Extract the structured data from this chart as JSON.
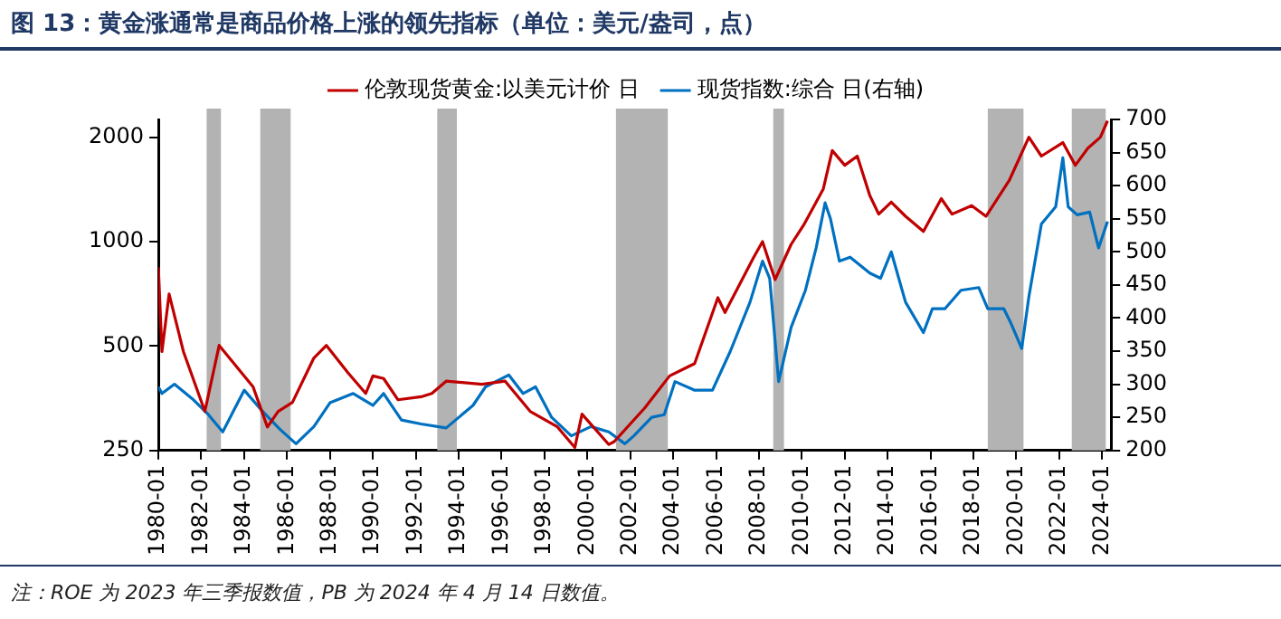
{
  "chart_data": {
    "type": "line",
    "title": "图 13：黄金涨通常是商品价格上涨的领先指标（单位：美元/盎司，点）",
    "annotations": [
      "注：ROE 为 2023 年三季报数值，PB 为 2024 年 4 月 14 日数值。"
    ],
    "log": "y",
    "grid": false,
    "legend": "top",
    "marker": "none",
    "line_style": "solid",
    "xlim": [
      "1980-01",
      "2024-06"
    ],
    "xticks": [
      "1980-01",
      "1982-01",
      "1984-01",
      "1986-01",
      "1988-01",
      "1990-01",
      "1992-01",
      "1994-01",
      "1996-01",
      "1998-01",
      "2000-01",
      "2002-01",
      "2004-01",
      "2006-01",
      "2008-01",
      "2010-01",
      "2012-01",
      "2014-01",
      "2016-01",
      "2018-01",
      "2020-01",
      "2022-01",
      "2024-01"
    ],
    "ylim": [
      250,
      2250
    ],
    "yticks": [
      250,
      500,
      1000,
      2000
    ],
    "y2lim": [
      200,
      700
    ],
    "y2ticks": [
      200,
      250,
      300,
      350,
      400,
      450,
      500,
      550,
      600,
      650,
      700
    ],
    "bands": [
      {
        "axis": "x",
        "from": "1982-04",
        "to": "1982-12",
        "color": "#b3b3b3"
      },
      {
        "axis": "x",
        "from": "1984-10",
        "to": "1986-03",
        "color": "#b3b3b3"
      },
      {
        "axis": "x",
        "from": "1993-01",
        "to": "1993-12",
        "color": "#b3b3b3"
      },
      {
        "axis": "x",
        "from": "2001-05",
        "to": "2003-10",
        "color": "#b3b3b3"
      },
      {
        "axis": "x",
        "from": "2008-09",
        "to": "2009-03",
        "color": "#b3b3b3"
      },
      {
        "axis": "x",
        "from": "2018-09",
        "to": "2020-05",
        "color": "#b3b3b3"
      },
      {
        "axis": "x",
        "from": "2022-08",
        "to": "2024-03",
        "color": "#b3b3b3"
      }
    ],
    "series": [
      {
        "name": "伦敦现货黄金:以美元计价 日",
        "color": "#c00000",
        "x": [
          "1980-01",
          "1980-03",
          "1980-07",
          "1981-03",
          "1982-03",
          "1982-11",
          "1983-10",
          "1984-06",
          "1985-02",
          "1985-08",
          "1986-04",
          "1987-04",
          "1987-11",
          "1988-11",
          "1989-09",
          "1990-01",
          "1990-07",
          "1991-03",
          "1992-04",
          "1992-10",
          "1993-06",
          "1995-02",
          "1996-03",
          "1997-05",
          "1998-08",
          "1999-06",
          "1999-10",
          "2001-01",
          "2001-04",
          "2002-09",
          "2003-11",
          "2005-01",
          "2006-02",
          "2006-06",
          "2007-10",
          "2008-03",
          "2008-10",
          "2009-07",
          "2010-02",
          "2011-01",
          "2011-06",
          "2012-01",
          "2012-08",
          "2013-03",
          "2013-08",
          "2014-03",
          "2014-11",
          "2015-09",
          "2016-07",
          "2017-01",
          "2017-12",
          "2018-08",
          "2019-09",
          "2020-08",
          "2021-03",
          "2022-03",
          "2022-10",
          "2023-05",
          "2023-12",
          "2024-04"
        ],
        "values": [
          843,
          482,
          706,
          482,
          324,
          502,
          428,
          381,
          292,
          324,
          344,
          462,
          502,
          419,
          365,
          410,
          403,
          350,
          357,
          365,
          396,
          388,
          396,
          324,
          293,
          255,
          318,
          260,
          265,
          331,
          410,
          445,
          689,
          625,
          900,
          1000,
          777,
          982,
          1116,
          1419,
          1830,
          1660,
          1764,
          1358,
          1200,
          1300,
          1183,
          1070,
          1330,
          1200,
          1270,
          1183,
          1500,
          2000,
          1764,
          1930,
          1660,
          1860,
          2000,
          2230
        ]
      },
      {
        "name": "现货指数:综合 日(右轴)",
        "color": "#0070c0",
        "axis": "y2",
        "x": [
          "1980-01",
          "1980-03",
          "1980-10",
          "1981-08",
          "1982-05",
          "1983-01",
          "1984-01",
          "1984-11",
          "1985-09",
          "1986-06",
          "1987-04",
          "1988-01",
          "1989-02",
          "1990-01",
          "1990-07",
          "1991-05",
          "1992-04",
          "1993-06",
          "1994-09",
          "1995-04",
          "1996-05",
          "1997-01",
          "1997-08",
          "1998-05",
          "1999-04",
          "2000-03",
          "2001-01",
          "2001-10",
          "2002-03",
          "2003-01",
          "2003-08",
          "2004-02",
          "2005-01",
          "2005-11",
          "2006-09",
          "2007-08",
          "2008-03",
          "2008-07",
          "2008-12",
          "2009-07",
          "2010-03",
          "2010-09",
          "2011-02",
          "2011-05",
          "2011-10",
          "2012-04",
          "2013-03",
          "2013-09",
          "2014-03",
          "2014-11",
          "2015-09",
          "2016-02",
          "2016-09",
          "2017-06",
          "2018-04",
          "2018-09",
          "2019-06",
          "2019-10",
          "2020-04",
          "2020-08",
          "2021-03",
          "2021-11",
          "2022-03",
          "2022-06",
          "2022-11",
          "2023-06",
          "2023-11",
          "2024-04"
        ],
        "values": [
          296,
          286,
          300,
          278,
          254,
          228,
          291,
          260,
          232,
          210,
          236,
          272,
          286,
          268,
          286,
          246,
          240,
          234,
          268,
          296,
          314,
          286,
          296,
          250,
          222,
          236,
          228,
          210,
          222,
          250,
          254,
          304,
          291,
          291,
          350,
          424,
          486,
          460,
          304,
          386,
          442,
          506,
          574,
          550,
          486,
          492,
          468,
          460,
          500,
          424,
          378,
          414,
          414,
          442,
          446,
          414,
          414,
          392,
          354,
          432,
          542,
          568,
          642,
          568,
          556,
          560,
          506,
          546
        ]
      }
    ]
  }
}
